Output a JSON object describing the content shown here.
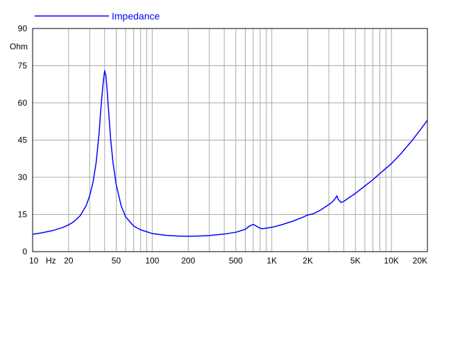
{
  "chart_data": {
    "type": "line",
    "title": "",
    "xlabel": "Hz",
    "ylabel": "Ohm",
    "xscale": "log",
    "xlim": [
      10,
      20000
    ],
    "ylim": [
      0,
      90
    ],
    "grid": true,
    "legend_position": "top-left",
    "x_tick_labels": [
      {
        "value": 10,
        "label": "10"
      },
      {
        "value": 20,
        "label": "20"
      },
      {
        "value": 50,
        "label": "50"
      },
      {
        "value": 100,
        "label": "100"
      },
      {
        "value": 200,
        "label": "200"
      },
      {
        "value": 500,
        "label": "500"
      },
      {
        "value": 1000,
        "label": "1K"
      },
      {
        "value": 2000,
        "label": "2K"
      },
      {
        "value": 5000,
        "label": "5K"
      },
      {
        "value": 10000,
        "label": "10K"
      },
      {
        "value": 20000,
        "label": "20K"
      }
    ],
    "y_tick_labels": [
      {
        "value": 0,
        "label": "0"
      },
      {
        "value": 15,
        "label": "15"
      },
      {
        "value": 30,
        "label": "30"
      },
      {
        "value": 45,
        "label": "45"
      },
      {
        "value": 60,
        "label": "60"
      },
      {
        "value": 75,
        "label": "75"
      },
      {
        "value": 90,
        "label": "90"
      }
    ],
    "series": [
      {
        "name": "Impedance",
        "color": "#0000ff",
        "x": [
          10,
          12,
          15,
          18,
          20,
          22,
          25,
          28,
          30,
          32,
          34,
          36,
          37,
          38,
          39,
          40,
          41,
          42,
          43,
          45,
          47,
          50,
          55,
          60,
          70,
          80,
          100,
          130,
          160,
          200,
          250,
          300,
          400,
          500,
          600,
          650,
          700,
          750,
          800,
          850,
          1000,
          1200,
          1500,
          1800,
          2000,
          2200,
          2500,
          2800,
          3000,
          3200,
          3400,
          3500,
          3600,
          3800,
          4000,
          4500,
          5000,
          6000,
          7000,
          8000,
          10000,
          12000,
          15000,
          18000,
          20000
        ],
        "y": [
          7.0,
          7.6,
          8.6,
          9.8,
          10.8,
          12.0,
          14.5,
          18.5,
          22.5,
          28.0,
          36.0,
          48.0,
          56.0,
          63.0,
          68.5,
          73.0,
          71.0,
          65.0,
          58.0,
          45.0,
          36.0,
          27.0,
          18.5,
          14.0,
          10.3,
          8.8,
          7.3,
          6.6,
          6.3,
          6.2,
          6.3,
          6.5,
          7.1,
          7.8,
          9.0,
          10.3,
          11.0,
          10.2,
          9.4,
          9.3,
          9.8,
          10.8,
          12.3,
          13.8,
          14.8,
          15.2,
          16.5,
          18.0,
          19.0,
          20.0,
          21.5,
          22.5,
          21.0,
          19.8,
          20.3,
          22.0,
          23.5,
          26.5,
          29.0,
          31.5,
          35.5,
          39.5,
          45.0,
          50.0,
          53.0
        ]
      }
    ]
  }
}
